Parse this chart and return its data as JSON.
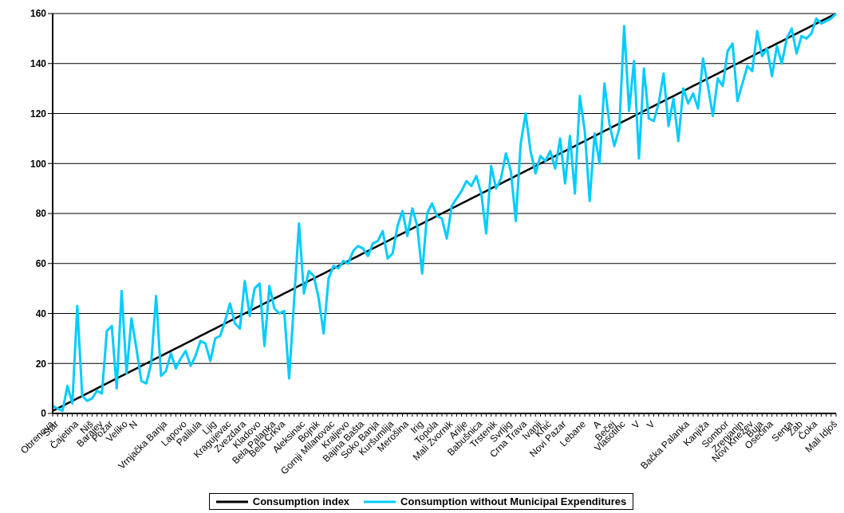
{
  "chart_data": {
    "type": "line",
    "categories": [
      "Obrenova",
      "Star",
      null,
      null,
      null,
      "Čajetina",
      null,
      null,
      "Niš",
      null,
      "Barajev",
      null,
      "Požar",
      null,
      null,
      "Veliko",
      null,
      "N",
      null,
      null,
      null,
      null,
      null,
      "Vrnjačka Banja",
      null,
      null,
      null,
      "Lapovo",
      null,
      null,
      "Palilula",
      null,
      null,
      "Ljig",
      null,
      null,
      "Kragujevac",
      null,
      null,
      "Zvezdara",
      null,
      null,
      "Kladovo",
      null,
      null,
      "Bela Palanka",
      null,
      "Bela Crkva",
      null,
      null,
      null,
      "Aleksinac",
      null,
      null,
      "Bojnik",
      null,
      null,
      "Gornji Milanovac",
      null,
      null,
      "Kraljevo",
      null,
      null,
      "Bajina Bašta",
      null,
      null,
      "Soko Banja",
      null,
      null,
      "Kuršumlija",
      null,
      null,
      "Merošina",
      null,
      null,
      "Irig",
      null,
      null,
      "Topola",
      null,
      null,
      "Mali Zvornik",
      null,
      null,
      "Arilje",
      null,
      null,
      "Babušnica",
      null,
      null,
      "Trstenik",
      null,
      null,
      "Svrljig",
      null,
      null,
      "Crna Trava",
      null,
      null,
      "Ivanji",
      null,
      "Knić",
      null,
      null,
      "Novi Pazar",
      null,
      null,
      null,
      "Lebane",
      null,
      null,
      "A",
      null,
      null,
      "Bečej",
      null,
      "Vlasotinc",
      null,
      null,
      "V",
      null,
      null,
      "V",
      null,
      null,
      null,
      null,
      null,
      null,
      "Bačka Palanka",
      null,
      null,
      null,
      "Kanjiža",
      null,
      null,
      null,
      "Sombor",
      null,
      null,
      "Zrenjanin",
      null,
      "Novi Knežev",
      null,
      "Buja",
      null,
      "Osečina",
      null,
      null,
      null,
      "Senta",
      null,
      "Žab",
      null,
      null,
      "Čoka",
      null,
      null,
      null,
      "Mali Idjoš"
    ],
    "series": [
      {
        "name": "Consumption index",
        "color": "#000000",
        "values": [
          1,
          2,
          3,
          4,
          5,
          6,
          7,
          8,
          9,
          10,
          11,
          12,
          13,
          14,
          15,
          16,
          17,
          18,
          19,
          20,
          21,
          22,
          23,
          24,
          25,
          26,
          27,
          28,
          29,
          30,
          31,
          32,
          33,
          34,
          35,
          36,
          37,
          38,
          39,
          40,
          41,
          42,
          43,
          44,
          45,
          46,
          47,
          48,
          49,
          50,
          51,
          52,
          53,
          54,
          55,
          56,
          57,
          58,
          59,
          60,
          61,
          62,
          63,
          64,
          65,
          66,
          67,
          68,
          69,
          70,
          71,
          72,
          73,
          74,
          75,
          76,
          77,
          78,
          79,
          80,
          81,
          82,
          83,
          84,
          85,
          86,
          87,
          88,
          89,
          90,
          91,
          92,
          93,
          94,
          95,
          96,
          97,
          98,
          99,
          100,
          101,
          102,
          103,
          104,
          105,
          106,
          107,
          108,
          109,
          110,
          111,
          112,
          113,
          114,
          115,
          116,
          117,
          118,
          119,
          120,
          121,
          122,
          123,
          124,
          125,
          126,
          127,
          128,
          129,
          130,
          131,
          132,
          133,
          134,
          135,
          136,
          137,
          138,
          139,
          140,
          141,
          142,
          143,
          144,
          145,
          146,
          147,
          148,
          149,
          150,
          151,
          152,
          153,
          154,
          155,
          156,
          157,
          158,
          159,
          160
        ]
      },
      {
        "name": "Consumption without Municipal Expenditures",
        "color": "#00ccff",
        "values": [
          3,
          2,
          1,
          11,
          4,
          43,
          7,
          5,
          6,
          9,
          8,
          33,
          35,
          10,
          49,
          16,
          38,
          26,
          13,
          12,
          20,
          47,
          15,
          17,
          24,
          18,
          22,
          25,
          19,
          23,
          29,
          28,
          21,
          30,
          31,
          37,
          44,
          36,
          34,
          53,
          39,
          50,
          52,
          27,
          51,
          42,
          40,
          41,
          14,
          45,
          76,
          48,
          57,
          55,
          46,
          32,
          54,
          59,
          58,
          61,
          60,
          65,
          67,
          66,
          63,
          68,
          69,
          73,
          62,
          64,
          75,
          81,
          71,
          82,
          75,
          56,
          80,
          84,
          79,
          78,
          70,
          83,
          86,
          89,
          93,
          91,
          95,
          88,
          72,
          99,
          90,
          94,
          104,
          97,
          77,
          108,
          120,
          105,
          96,
          103,
          101,
          105,
          98,
          110,
          92,
          111,
          88,
          127,
          113,
          85,
          112,
          100,
          132,
          116,
          107,
          114,
          155,
          121,
          141,
          102,
          138,
          118,
          117,
          124,
          136,
          115,
          126,
          109,
          130,
          124,
          128,
          122,
          142,
          131,
          119,
          134,
          131,
          145,
          148,
          125,
          132,
          139,
          137,
          153,
          143,
          146,
          135,
          147,
          140,
          150,
          154,
          144,
          151,
          150,
          152,
          158,
          156,
          157,
          158,
          160
        ]
      }
    ],
    "ylim": [
      0,
      160
    ],
    "yticks": [
      0,
      20,
      40,
      60,
      80,
      100,
      120,
      140,
      160
    ],
    "grid": "y",
    "legend": "bottom"
  }
}
